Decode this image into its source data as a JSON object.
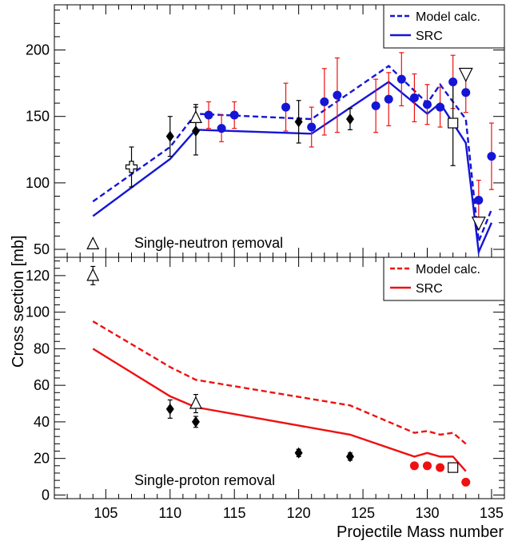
{
  "chart_data": [
    {
      "type": "line",
      "panel": "top",
      "annotation": "Single-neutron removal",
      "annotation_marker": "open-triangle",
      "xlabel": "Projectile Mass number",
      "ylabel": "Cross section [mb]",
      "xlim": [
        101,
        136
      ],
      "ylim": [
        44,
        234
      ],
      "yticks": [
        50,
        100,
        150,
        200
      ],
      "legend_position": "top-right",
      "legend": [
        "Model calc.",
        "SRC"
      ],
      "series": [
        {
          "name": "Model calc.",
          "style": "dashed",
          "color": "#1515d6",
          "points": [
            [
              104,
              86
            ],
            [
              110,
              127
            ],
            [
              112,
              152
            ],
            [
              121,
              148
            ],
            [
              127,
              188
            ],
            [
              130,
              160
            ],
            [
              131,
              174
            ],
            [
              133,
              148
            ],
            [
              134,
              56
            ],
            [
              135,
              80
            ]
          ]
        },
        {
          "name": "SRC",
          "style": "solid",
          "color": "#1515d6",
          "points": [
            [
              104,
              75
            ],
            [
              110,
              118
            ],
            [
              112,
              140
            ],
            [
              121,
              137
            ],
            [
              127,
              176
            ],
            [
              130,
              152
            ],
            [
              131,
              160
            ],
            [
              133,
              130
            ],
            [
              134,
              48
            ],
            [
              135,
              70
            ]
          ]
        }
      ],
      "data": {
        "blue_circles": [
          [
            113,
            151
          ],
          [
            114,
            141
          ],
          [
            115,
            151
          ],
          [
            119,
            157
          ],
          [
            121,
            142
          ],
          [
            122,
            161
          ],
          [
            123,
            166
          ],
          [
            126,
            158
          ],
          [
            127,
            163
          ],
          [
            128,
            178
          ],
          [
            129,
            164
          ],
          [
            130,
            159
          ],
          [
            131,
            157
          ],
          [
            132,
            176
          ],
          [
            133,
            168
          ],
          [
            134,
            87
          ],
          [
            135,
            120
          ]
        ],
        "blue_circle_errors": [
          10,
          10,
          10,
          18,
          15,
          25,
          28,
          20,
          20,
          20,
          18,
          15,
          15,
          20,
          15,
          15,
          25
        ],
        "diamonds": [
          [
            110,
            135
          ],
          [
            112,
            139
          ],
          [
            120,
            146
          ],
          [
            124,
            148
          ]
        ],
        "diamond_errors": [
          15,
          18,
          16,
          8
        ],
        "open_cross": [
          [
            107,
            112
          ]
        ],
        "open_cross_errors": [
          15
        ],
        "open_triangle_up": [
          [
            112,
            149
          ]
        ],
        "open_triangle_up_errors": [
          10
        ],
        "open_triangle_down": [
          [
            133,
            182
          ],
          [
            134,
            70
          ]
        ],
        "open_square": [
          [
            132,
            145
          ]
        ],
        "open_square_errors": [
          32
        ],
        "annotation_triangle": [
          [
            104,
            54
          ]
        ]
      }
    },
    {
      "type": "line",
      "panel": "bottom",
      "annotation": "Single-proton removal",
      "xlabel": "Projectile Mass number",
      "ylabel": "Cross section [mb]",
      "xlim": [
        101,
        136
      ],
      "ylim": [
        -2,
        130
      ],
      "yticks": [
        0,
        20,
        40,
        60,
        80,
        100,
        120
      ],
      "xticks": [
        105,
        110,
        115,
        120,
        125,
        130,
        135
      ],
      "legend_position": "top-right",
      "legend": [
        "Model calc.",
        "SRC"
      ],
      "series": [
        {
          "name": "Model calc.",
          "style": "dashed",
          "color": "#ee1111",
          "points": [
            [
              104,
              95
            ],
            [
              110,
              70
            ],
            [
              112,
              63
            ],
            [
              124,
              49
            ],
            [
              129,
              34
            ],
            [
              130,
              35
            ],
            [
              131,
              33
            ],
            [
              132,
              34
            ],
            [
              133,
              28
            ]
          ]
        },
        {
          "name": "SRC",
          "style": "solid",
          "color": "#ee1111",
          "points": [
            [
              104,
              80
            ],
            [
              110,
              54
            ],
            [
              112,
              48
            ],
            [
              124,
              33
            ],
            [
              129,
              21
            ],
            [
              130,
              23
            ],
            [
              131,
              21
            ],
            [
              132,
              21
            ],
            [
              133,
              13
            ]
          ]
        }
      ],
      "data": {
        "red_circles": [
          [
            129,
            16
          ],
          [
            130,
            16
          ],
          [
            131,
            15
          ],
          [
            132,
            15
          ],
          [
            133,
            7
          ]
        ],
        "diamonds": [
          [
            110,
            47
          ],
          [
            112,
            40
          ],
          [
            120,
            23
          ],
          [
            124,
            21
          ]
        ],
        "diamond_errors": [
          5,
          3,
          2,
          2
        ],
        "open_triangle_up": [
          [
            104,
            120
          ],
          [
            112,
            50
          ]
        ],
        "open_triangle_up_errors": [
          5,
          5
        ],
        "open_square": [
          [
            132,
            15
          ]
        ],
        "open_square_errors": [
          2
        ]
      }
    }
  ]
}
